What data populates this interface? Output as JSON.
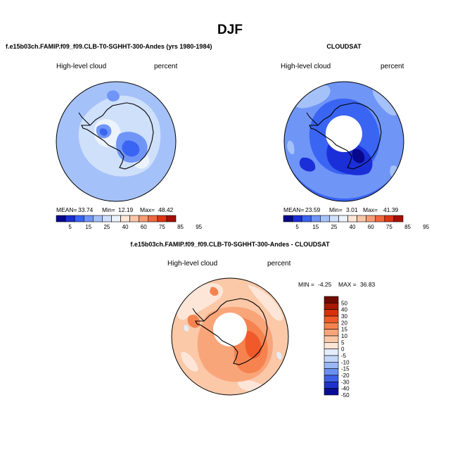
{
  "figure": {
    "title": "DJF"
  },
  "panels": [
    {
      "id": "model",
      "subtitle": "f.e15b03ch.FAMIP.f09_f09.CLB-T0-SGHHT-300-Andes (yrs 1980-1984)",
      "left_label": "High-level cloud",
      "right_label": "percent",
      "stats": {
        "mean_label": "MEAN=",
        "mean": "33.74",
        "min_label": "Min=",
        "min": "12.19",
        "max_label": "Max=",
        "max": "48.42"
      },
      "colorbar_ticks": [
        "5",
        "15",
        "25",
        "40",
        "60",
        "75",
        "85",
        "95"
      ],
      "pole_hole": false
    },
    {
      "id": "obs",
      "subtitle": "CLOUDSAT",
      "left_label": "High-level cloud",
      "right_label": "percent",
      "stats": {
        "mean_label": "MEAN=",
        "mean": "23.59",
        "min_label": "Min=",
        "min": "3.01",
        "max_label": "Max=",
        "max": "41.39"
      },
      "colorbar_ticks": [
        "5",
        "15",
        "25",
        "40",
        "60",
        "75",
        "85",
        "95"
      ],
      "pole_hole": true
    },
    {
      "id": "diff",
      "subtitle": "f.e15b03ch.FAMIP.f09_f09.CLB-T0-SGHHT-300-Andes - CLOUDSAT",
      "left_label": "High-level cloud",
      "right_label": "percent",
      "minmax": {
        "min_label": "MIN =",
        "min": "-4.25",
        "max_label": "MAX =",
        "max": "36.83"
      },
      "colorbar_ticks": [
        "50",
        "40",
        "30",
        "20",
        "15",
        "10",
        "5",
        "0",
        "-5",
        "-10",
        "-15",
        "-20",
        "-30",
        "-40",
        "-50"
      ],
      "pole_hole": true
    }
  ],
  "colors": {
    "seq_scale": [
      "#08088c",
      "#1b2fd8",
      "#3a64f2",
      "#6f95f7",
      "#a5c1fa",
      "#cfe0fb",
      "#ecf3fd",
      "#fde6d6",
      "#fbc6a6",
      "#f79c74",
      "#f1673f",
      "#dd3513",
      "#a50f00"
    ],
    "div_scale": [
      "#6e0b00",
      "#a71a00",
      "#d8300c",
      "#f05a2b",
      "#f6834f",
      "#f9a57a",
      "#fbc8a8",
      "#fde6d8",
      "#e4eefc",
      "#c4d7f8",
      "#99b7f4",
      "#6a8ff0",
      "#3f5fe6",
      "#1f33cc",
      "#0a0c96"
    ]
  }
}
